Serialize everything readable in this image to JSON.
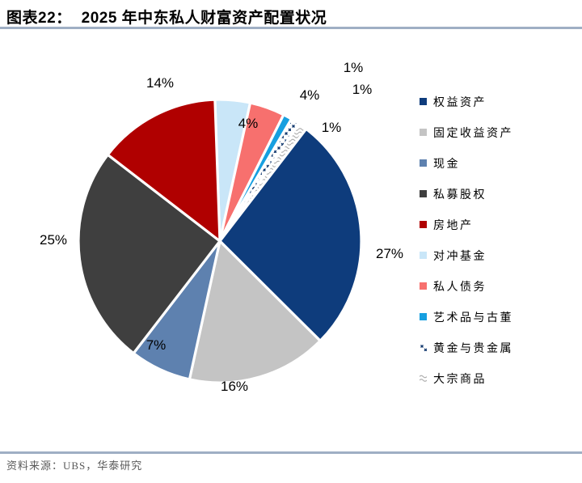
{
  "header": {
    "tag": "图表22：",
    "title": "2025 年中东私人财富资产配置状况"
  },
  "chart_data": {
    "type": "pie",
    "title": "2025 年中东私人财富资产配置状况",
    "unit": "%",
    "start_angle_deg": -2,
    "legend_position": "right",
    "slices": [
      {
        "name": "权益资产",
        "value": 27,
        "label": "27%",
        "color": "#0E3C7C"
      },
      {
        "name": "固定收益资产",
        "value": 16,
        "label": "16%",
        "color": "#C4C4C4"
      },
      {
        "name": "现金",
        "value": 7,
        "label": "7%",
        "color": "#5E81AF"
      },
      {
        "name": "私募股权",
        "value": 25,
        "label": "25%",
        "color": "#3F3F3F"
      },
      {
        "name": "房地产",
        "value": 14,
        "label": "14%",
        "color": "#B00000"
      },
      {
        "name": "对冲基金",
        "value": 4,
        "label": "4%",
        "color": "#C9E6F8"
      },
      {
        "name": "私人债务",
        "value": 4,
        "label": "4%",
        "color": "#F7706E"
      },
      {
        "name": "艺术品与古董",
        "value": 1,
        "label": "1%",
        "color": "#169FE0"
      },
      {
        "name": "黄金与贵金属",
        "value": 1,
        "label": "1%",
        "color": "#11386E",
        "pattern": "pat-gold"
      },
      {
        "name": "大宗商品",
        "value": 1,
        "label": "1%",
        "color": "#B0B0B0",
        "pattern": "pat-comm"
      }
    ],
    "draw_order_clockwise_from_top": [
      5,
      6,
      7,
      8,
      9,
      0,
      1,
      2,
      3,
      4
    ]
  },
  "footer": {
    "source": "资料来源：UBS，华泰研究"
  }
}
